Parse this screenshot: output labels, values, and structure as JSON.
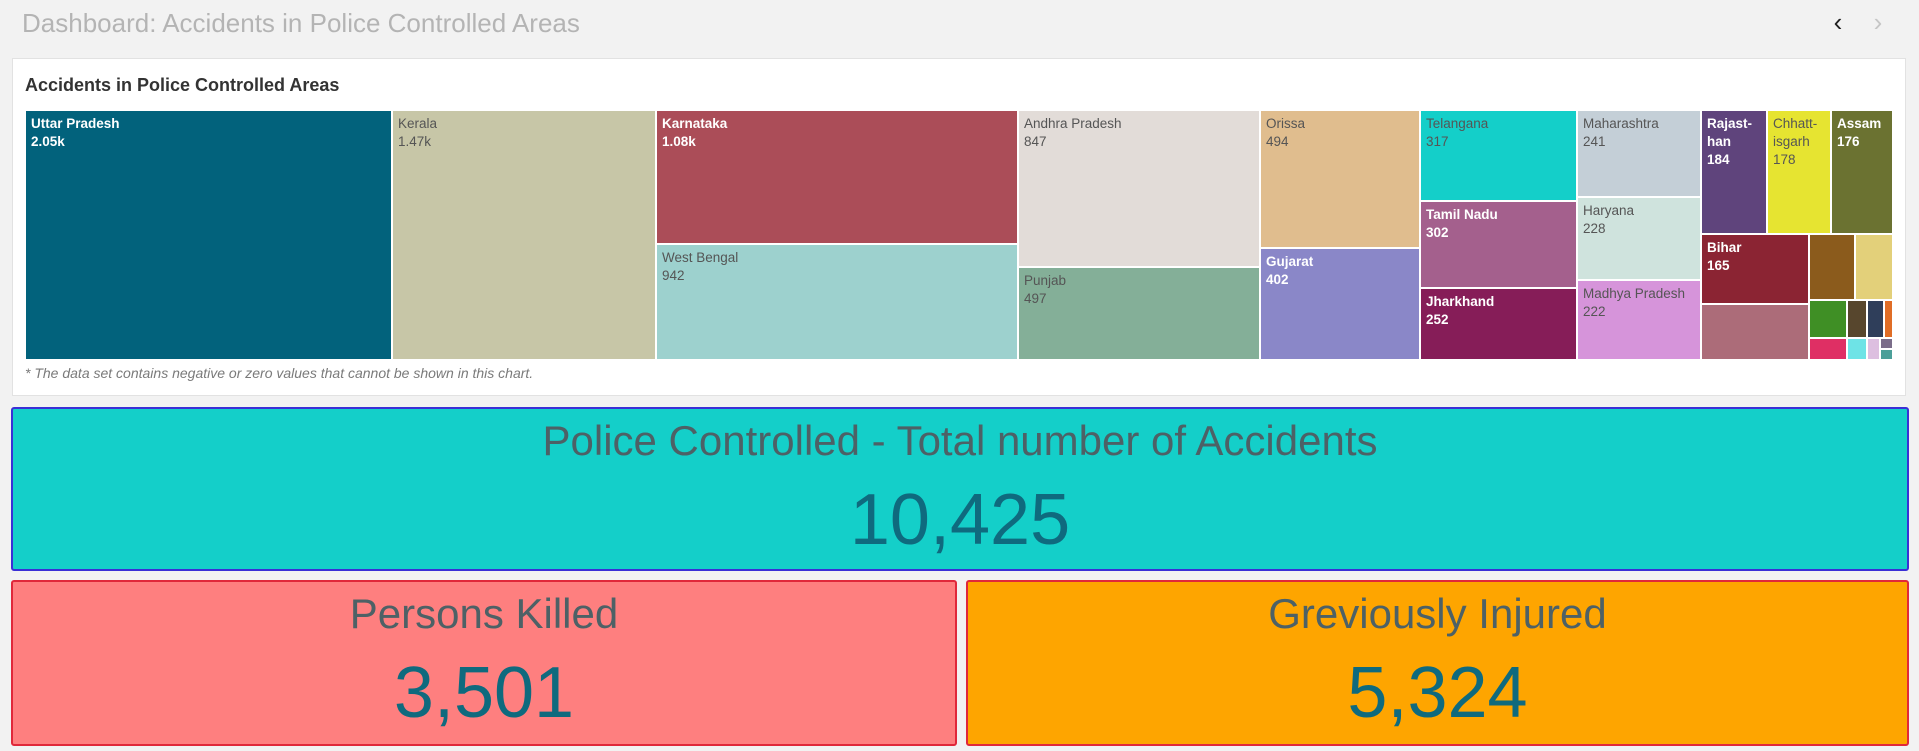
{
  "header": {
    "title": "Dashboard: Accidents in Police Controlled Areas",
    "prev_icon": "chevron-left-icon",
    "next_icon": "chevron-right-icon",
    "prev_glyph": "‹",
    "next_glyph": "›"
  },
  "panel": {
    "title": "Accidents in Police Controlled Areas",
    "footnote": "* The data set contains negative or zero values that cannot be shown in this chart."
  },
  "chart_data": {
    "type": "treemap",
    "title": "Accidents in Police Controlled Areas",
    "items": [
      {
        "label": "Uttar Pradesh",
        "display": "2.05k",
        "value": 2050,
        "color": "#02627c"
      },
      {
        "label": "Kerala",
        "display": "1.47k",
        "value": 1470,
        "color": "#c7c6a7"
      },
      {
        "label": "Karnataka",
        "display": "1.08k",
        "value": 1080,
        "color": "#ab4d58"
      },
      {
        "label": "West Bengal",
        "display": "942",
        "value": 942,
        "color": "#9dd1ce"
      },
      {
        "label": "Andhra Pradesh",
        "display": "847",
        "value": 847,
        "color": "#e2dcd8"
      },
      {
        "label": "Punjab",
        "display": "497",
        "value": 497,
        "color": "#84af98"
      },
      {
        "label": "Orissa",
        "display": "494",
        "value": 494,
        "color": "#e0bd8e"
      },
      {
        "label": "Gujarat",
        "display": "402",
        "value": 402,
        "color": "#8a87c8"
      },
      {
        "label": "Telangana",
        "display": "317",
        "value": 317,
        "color": "#14cfc9"
      },
      {
        "label": "Tamil Nadu",
        "display": "302",
        "value": 302,
        "color": "#a4608d"
      },
      {
        "label": "Jharkhand",
        "display": "252",
        "value": 252,
        "color": "#861d58"
      },
      {
        "label": "Maharashtra",
        "display": "241",
        "value": 241,
        "color": "#c4cfd7"
      },
      {
        "label": "Haryana",
        "display": "228",
        "value": 228,
        "color": "#cfe3dd"
      },
      {
        "label": "Madhya Pradesh",
        "display": "222",
        "value": 222,
        "color": "#d694da"
      },
      {
        "label": "Rajast-\nhan",
        "display": "184",
        "value": 184,
        "color": "#5f447c"
      },
      {
        "label": "Chhatt-\nisgarh",
        "display": "178",
        "value": 178,
        "color": "#e6e431"
      },
      {
        "label": "Assam",
        "display": "176",
        "value": 176,
        "color": "#6b7231"
      },
      {
        "label": "Bihar",
        "display": "165",
        "value": 165,
        "color": "#8b2433"
      }
    ],
    "unlabeled_tile_colors": [
      "#ac6c79",
      "#8b5b1c",
      "#e3d07a",
      "#3f8f25",
      "#57462d",
      "#2f3e5a",
      "#e06d26",
      "#df2f64",
      "#6ee3e6",
      "#ddbfe0",
      "#7b6d8a",
      "#4c9f99"
    ]
  },
  "kpis": {
    "total": {
      "label": "Police Controlled - Total number of Accidents",
      "value": "10,425"
    },
    "killed": {
      "label": "Persons Killed",
      "value": "3,501"
    },
    "injured": {
      "label": "Greviously Injured",
      "value": "5,324"
    }
  }
}
